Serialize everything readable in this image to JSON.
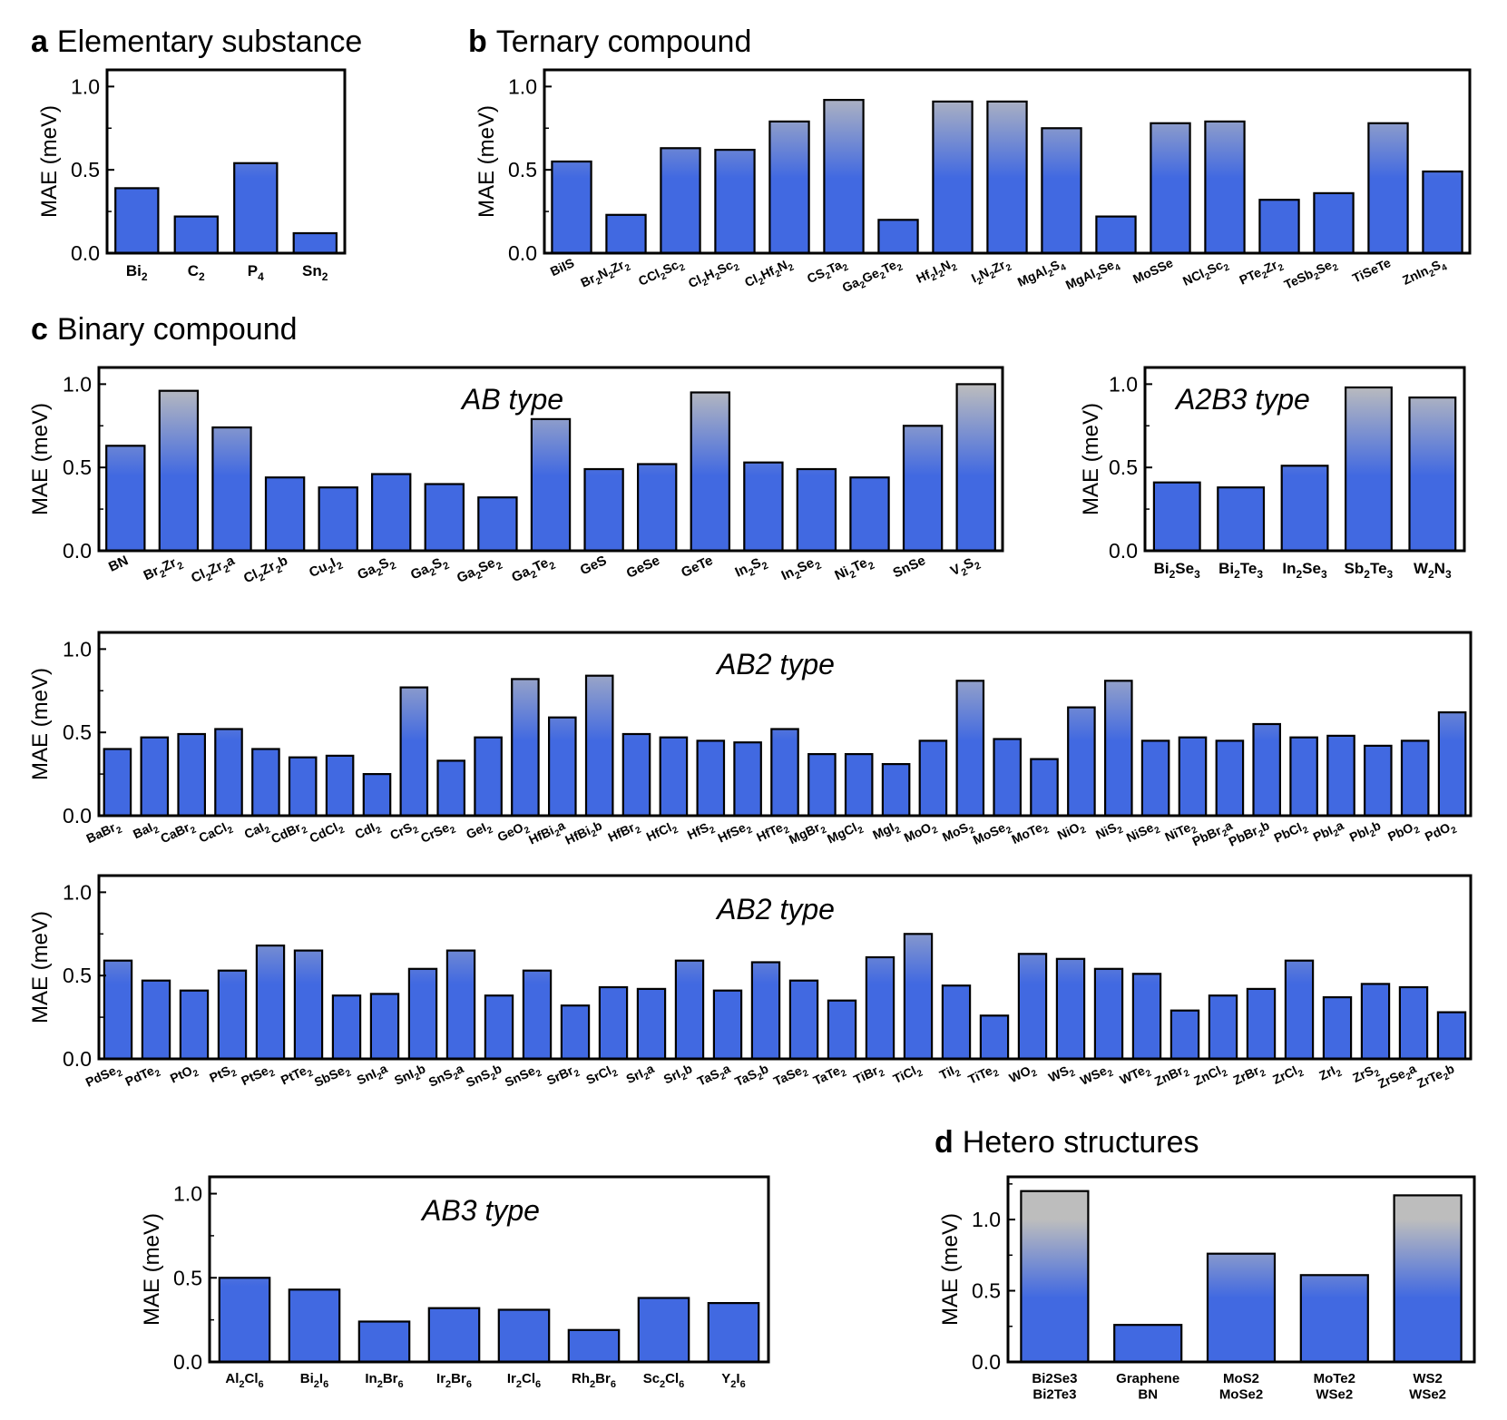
{
  "sections": {
    "a": {
      "letter": "a",
      "title": "Elementary substance"
    },
    "b": {
      "letter": "b",
      "title": "Ternary compound"
    },
    "c": {
      "letter": "c",
      "title": "Binary compound"
    },
    "d": {
      "letter": "d",
      "title": "Hetero structures"
    }
  },
  "colors": {
    "bar_top": "#bdbdbd",
    "bar_bottom": "#4169e1",
    "frame": "#000000"
  },
  "chart_data": [
    {
      "type": "bar",
      "id": "elementary",
      "title": "",
      "ylabel": "MAE (meV)",
      "ylim": [
        0,
        1.1
      ],
      "yticks": [
        "0.0",
        "0.5",
        "1.0"
      ],
      "categories": [
        "Bi|2",
        "C|2",
        "P|4",
        "Sn|2"
      ],
      "values": [
        0.39,
        0.22,
        0.54,
        0.12
      ]
    },
    {
      "type": "bar",
      "id": "ternary",
      "title": "",
      "ylabel": "MAE (meV)",
      "ylim": [
        0,
        1.1
      ],
      "yticks": [
        "0.0",
        "0.5",
        "1.0"
      ],
      "categories": [
        "BiIS",
        "Br|2|N|2|Zr|2",
        "CCl|2|Sc|2",
        "Cl|2|H|2|Sc|2",
        "Cl|2|Hf|2|N|2",
        "CS|2|Ta|2",
        "Ga|2|Ge|2|Te|2",
        "Hf|2|I|2|N|2",
        "I|2|N|2|Zr|2",
        "MgAl|2|S|4",
        "MgAl|2|Se|4",
        "MoSSe",
        "NCl|2|Sc|2",
        "PTe|2|Zr|2",
        "TeSb|2|Se|2",
        "TiSeTe",
        "ZnIn|2|S|4"
      ],
      "values": [
        0.55,
        0.23,
        0.63,
        0.62,
        0.79,
        0.92,
        0.2,
        0.91,
        0.91,
        0.75,
        0.22,
        0.78,
        0.79,
        0.32,
        0.36,
        0.78,
        0.49
      ]
    },
    {
      "type": "bar",
      "id": "binary-ab",
      "title": "AB type",
      "ylabel": "MAE (meV)",
      "ylim": [
        0,
        1.1
      ],
      "yticks": [
        "0.0",
        "0.5",
        "1.0"
      ],
      "categories": [
        "BN",
        "Br|2|Zr|2",
        "Cl|2|Zr|2|a",
        "Cl|2|Zr|2|b",
        "Cu|2|I|2",
        "Ga|2|S|2",
        "Ga|2|S|2",
        "Ga|2|Se|2",
        "Ga|2|Te|2",
        "GeS",
        "GeSe",
        "GeTe",
        "In|2|S|2",
        "In|2|Se|2",
        "Ni|2|Te|2",
        "SnSe",
        "V|2|S|2"
      ],
      "values": [
        0.63,
        0.96,
        0.74,
        0.44,
        0.38,
        0.46,
        0.4,
        0.32,
        0.79,
        0.49,
        0.52,
        0.95,
        0.53,
        0.49,
        0.44,
        0.75,
        1.0
      ]
    },
    {
      "type": "bar",
      "id": "binary-a2b3",
      "title": "A2B3 type",
      "ylabel": "MAE (meV)",
      "ylim": [
        0,
        1.1
      ],
      "yticks": [
        "0.0",
        "0.5",
        "1.0"
      ],
      "categories": [
        "Bi|2|Se|3",
        "Bi|2|Te|3",
        "In|2|Se|3",
        "Sb|2|Te|3",
        "W|2|N|3"
      ],
      "values": [
        0.41,
        0.38,
        0.51,
        0.98,
        0.92
      ]
    },
    {
      "type": "bar",
      "id": "binary-ab2-1",
      "title": "AB2 type",
      "ylabel": "MAE (meV)",
      "ylim": [
        0,
        1.1
      ],
      "yticks": [
        "0.0",
        "0.5",
        "1.0"
      ],
      "categories": [
        "BaBr|2",
        "BaI|2",
        "CaBr|2",
        "CaCl|2",
        "CaI|2",
        "CdBr|2",
        "CdCl|2",
        "CdI|2",
        "CrS|2",
        "CrSe|2",
        "GeI|2",
        "GeO|2",
        "HfBi|2|a",
        "HfBi|2|b",
        "HfBr|2",
        "HfCl|2",
        "HfS|2",
        "HfSe|2",
        "HfTe|2",
        "MgBr|2",
        "MgCl|2",
        "MgI|2",
        "MoO|2",
        "MoS|2",
        "MoSe|2",
        "MoTe|2",
        "NiO|2",
        "NiS|2",
        "NiSe|2",
        "NiTe|2",
        "PbBr|2|a",
        "PbBr|2|b",
        "PbCl|2",
        "PbI|2|a",
        "PbI|2|b",
        "PbO|2",
        "PdO|2"
      ],
      "values": [
        0.4,
        0.47,
        0.49,
        0.52,
        0.4,
        0.35,
        0.36,
        0.25,
        0.77,
        0.33,
        0.47,
        0.82,
        0.59,
        0.84,
        0.49,
        0.47,
        0.45,
        0.44,
        0.52,
        0.37,
        0.37,
        0.31,
        0.45,
        0.81,
        0.46,
        0.34,
        0.65,
        0.81,
        0.45,
        0.47,
        0.45,
        0.55,
        0.47,
        0.48,
        0.42,
        0.45,
        0.62
      ]
    },
    {
      "type": "bar",
      "id": "binary-ab2-2",
      "title": "AB2 type",
      "ylabel": "MAE (meV)",
      "ylim": [
        0,
        1.1
      ],
      "yticks": [
        "0.0",
        "0.5",
        "1.0"
      ],
      "categories": [
        "PdSe|2",
        "PdTe|2",
        "PtO|2",
        "PtS|2",
        "PtSe|2",
        "PtTe|2",
        "SbSe|2",
        "SnI|2|a",
        "SnI|2|b",
        "SnS|2|a",
        "SnS|2|b",
        "SnSe|2",
        "SrBr|2",
        "SrCl|2",
        "SrI|2|a",
        "SrI|2|b",
        "TaS|2|a",
        "TaS|2|b",
        "TaSe|2",
        "TaTe|2",
        "TiBr|2",
        "TiCl|2",
        "TiI|2",
        "TiTe|2",
        "WO|2",
        "WS|2",
        "WSe|2",
        "WTe|2",
        "ZnBr|2",
        "ZnCl|2",
        "ZrBr|2",
        "ZrCl|2",
        "ZrI|2",
        "ZrS|2",
        "ZrSe|2|a",
        "ZrTe|2|b"
      ],
      "values": [
        0.59,
        0.47,
        0.41,
        0.53,
        0.68,
        0.65,
        0.38,
        0.39,
        0.54,
        0.65,
        0.38,
        0.53,
        0.32,
        0.43,
        0.42,
        0.59,
        0.41,
        0.58,
        0.47,
        0.35,
        0.61,
        0.75,
        0.44,
        0.26,
        0.63,
        0.6,
        0.54,
        0.51,
        0.29,
        0.38,
        0.42,
        0.59,
        0.37,
        0.45,
        0.43,
        0.28
      ]
    },
    {
      "type": "bar",
      "id": "binary-ab3",
      "title": "AB3 type",
      "ylabel": "MAE (meV)",
      "ylim": [
        0,
        1.1
      ],
      "yticks": [
        "0.0",
        "0.5",
        "1.0"
      ],
      "categories": [
        "Al|2|Cl|6",
        "Bi|2|I|6",
        "In|2|Br|6",
        "Ir|2|Br|6",
        "Ir|2|Cl|6",
        "Rh|2|Br|6",
        "Sc|2|Cl|6",
        "Y|2|I|6"
      ],
      "values": [
        0.5,
        0.43,
        0.24,
        0.32,
        0.31,
        0.19,
        0.38,
        0.35
      ]
    },
    {
      "type": "bar",
      "id": "hetero",
      "title": "",
      "ylabel": "MAE (meV)",
      "ylim": [
        0,
        1.3
      ],
      "yticks": [
        "0.0",
        "0.5",
        "1.0"
      ],
      "categories": [
        "Bi2Se3\nBi2Te3",
        "Graphene\nBN",
        "MoS2\nMoSe2",
        "MoTe2\nWSe2",
        "WS2\nWSe2"
      ],
      "values": [
        1.2,
        0.26,
        0.76,
        0.61,
        1.17
      ]
    }
  ]
}
